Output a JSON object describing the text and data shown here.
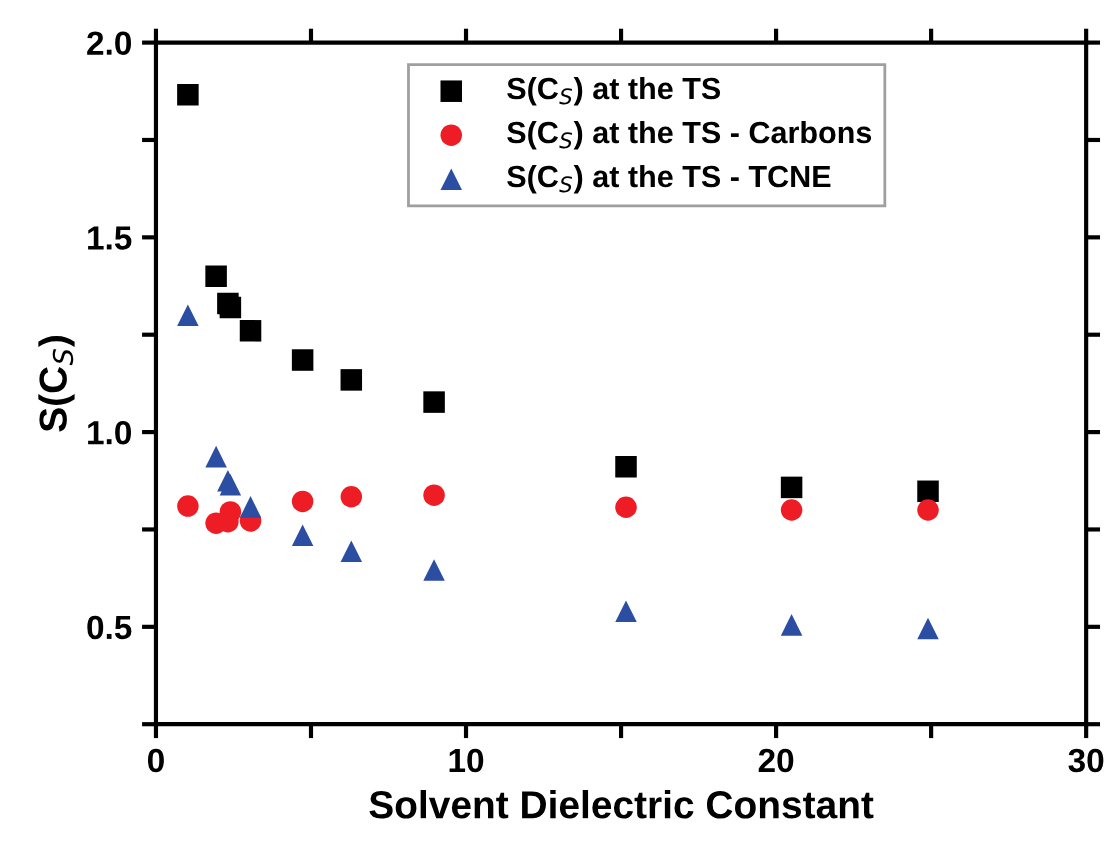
{
  "chart_data": {
    "type": "scatter",
    "xlabel": "Solvent Dielectric Constant",
    "ylabel": "S(C$_{S}$)",
    "xlim": [
      0,
      30
    ],
    "ylim": [
      0.25,
      2.0
    ],
    "xticks": [
      0,
      {
        "value": 5,
        "label": null
      },
      10,
      {
        "value": 15,
        "label": null
      },
      20,
      {
        "value": 25,
        "label": null
      },
      30
    ],
    "yticks": [
      {
        "value": 0.25,
        "label": null
      },
      0.5,
      {
        "value": 0.75,
        "label": null
      },
      {
        "value": 1.0,
        "label": "1.0"
      },
      {
        "value": 1.25,
        "label": null
      },
      1.5,
      {
        "value": 1.75,
        "label": null
      },
      {
        "value": 2.0,
        "label": "2.0"
      }
    ],
    "legend": "top right",
    "grid": false,
    "series": [
      {
        "name": "S(C$_{S}$) at the TS",
        "color": "#000000",
        "marker": "square",
        "x": [
          1.03,
          1.94,
          2.32,
          2.4,
          3.05,
          4.73,
          6.3,
          8.97,
          15.16,
          20.5,
          24.9
        ],
        "values": [
          1.866,
          1.4,
          1.33,
          1.32,
          1.26,
          1.185,
          1.134,
          1.077,
          0.911,
          0.858,
          0.848
        ]
      },
      {
        "name": "S(C$_{S}$) at the TS - Carbons",
        "color": "#ee1c24",
        "marker": "circle",
        "x": [
          1.03,
          1.94,
          2.32,
          2.4,
          3.05,
          4.73,
          6.3,
          8.97,
          15.16,
          20.5,
          24.9
        ],
        "values": [
          0.81,
          0.766,
          0.77,
          0.795,
          0.772,
          0.822,
          0.834,
          0.838,
          0.807,
          0.8,
          0.8
        ]
      },
      {
        "name": "S(C$_{S}$) at the TS - TCNE",
        "color": "#2b4ea2",
        "marker": "triangle",
        "x": [
          1.03,
          1.94,
          2.32,
          2.4,
          3.05,
          4.73,
          6.3,
          8.97,
          15.16,
          20.5,
          24.9
        ],
        "values": [
          1.3,
          0.937,
          0.875,
          0.865,
          0.808,
          0.735,
          0.694,
          0.646,
          0.54,
          0.505,
          0.496
        ]
      }
    ]
  }
}
